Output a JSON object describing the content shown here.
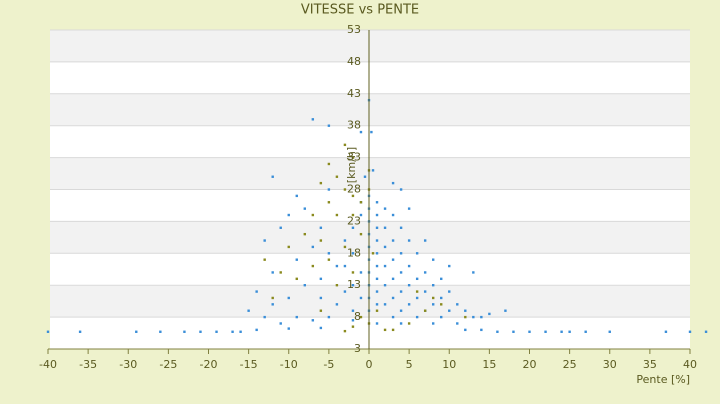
{
  "chart_data": {
    "type": "scatter",
    "title": "VITESSE vs PENTE",
    "x_label": "Pente [%]",
    "y_label": "[km/h]",
    "xlim": [
      -40,
      40
    ],
    "xticks": [
      -40,
      -35,
      -30,
      -25,
      -20,
      -15,
      -10,
      -5,
      0,
      5,
      10,
      15,
      20,
      25,
      30,
      35,
      40
    ],
    "ylim": [
      3,
      53
    ],
    "yticks": [
      3,
      8,
      13,
      18,
      23,
      28,
      33,
      38,
      43,
      48,
      53
    ],
    "grid": true,
    "series": [
      {
        "color": "#3a8ed8",
        "x": [
          0,
          -7,
          -5,
          -1,
          0.3,
          -12,
          -5,
          3,
          4,
          -9,
          -10,
          -11,
          -13,
          -8,
          -6,
          -7,
          -9,
          -12,
          -14,
          -15,
          -13,
          -11,
          -9,
          -7,
          -5,
          -4,
          -3,
          -6,
          -4,
          -2,
          -3,
          -2,
          -1,
          -1,
          0,
          0,
          0,
          0,
          0,
          0,
          0,
          0,
          0,
          0,
          1,
          1,
          1,
          1,
          1,
          1,
          1,
          1,
          1,
          2,
          2,
          2,
          2,
          2,
          2,
          3,
          3,
          3,
          3,
          3,
          3,
          4,
          4,
          4,
          4,
          4,
          5,
          5,
          5,
          5,
          5,
          6,
          6,
          6,
          6,
          7,
          7,
          7,
          7,
          8,
          8,
          8,
          9,
          9,
          9,
          10,
          10,
          10,
          11,
          12,
          13,
          13,
          14,
          15,
          17,
          -1,
          -1,
          -2,
          -2,
          -3,
          -5,
          -6,
          -8,
          -10,
          -12,
          -2,
          1,
          4,
          8,
          11,
          -0.5,
          0.5,
          -40,
          -36,
          -29,
          -26,
          -23,
          -21,
          -19,
          -17,
          -16,
          16,
          18,
          20,
          22,
          24,
          25,
          27,
          30,
          37,
          40,
          42,
          -14,
          -10,
          -6,
          12,
          14
        ],
        "values": [
          42,
          39,
          38,
          37,
          37,
          30,
          28,
          29,
          28,
          27,
          24,
          22,
          20,
          25,
          22,
          19,
          17,
          15,
          12,
          9,
          8,
          7,
          8,
          7.5,
          8,
          10,
          12,
          14,
          16,
          18,
          20,
          22,
          24,
          26,
          27,
          25,
          23,
          21,
          19,
          17,
          15,
          13,
          11,
          9,
          26,
          24,
          22,
          20,
          18,
          16,
          14,
          12,
          10,
          25,
          22,
          19,
          16,
          13,
          10,
          24,
          20,
          17,
          14,
          11,
          8,
          22,
          18,
          15,
          12,
          9,
          25,
          20,
          16,
          13,
          10,
          18,
          14,
          11,
          8,
          20,
          15,
          12,
          9,
          17,
          13,
          10,
          14,
          11,
          8,
          16,
          12,
          9,
          10,
          9,
          15,
          8,
          8,
          8.5,
          9,
          15,
          11,
          13,
          9,
          16,
          18,
          11,
          13,
          11,
          10,
          7.5,
          7,
          7,
          7,
          7,
          30,
          31,
          5.7,
          5.7,
          5.7,
          5.7,
          5.7,
          5.7,
          5.7,
          5.7,
          5.7,
          5.7,
          5.7,
          5.7,
          5.7,
          5.7,
          5.7,
          5.7,
          5.7,
          5.7,
          5.7,
          5.7,
          6,
          6.2,
          6.3,
          6,
          6
        ]
      },
      {
        "color": "#8a8a1e",
        "x": [
          -3,
          -2,
          -5,
          -4,
          -3,
          -6,
          -2,
          -5,
          -7,
          -4,
          -2,
          -8,
          -6,
          -10,
          -13,
          -11,
          -9,
          -7,
          -5,
          -3,
          -1,
          -4,
          -2,
          0,
          0.5,
          1,
          -1,
          0,
          2,
          -2,
          3,
          -3,
          6,
          8,
          9,
          7,
          5,
          12,
          -6,
          -12,
          -1,
          0
        ],
        "values": [
          35,
          33,
          32,
          30,
          28,
          29,
          27,
          26,
          24,
          24,
          24,
          21,
          20,
          19,
          17,
          15,
          14,
          16,
          17,
          19,
          21,
          13,
          15,
          28,
          18,
          9,
          8,
          7,
          6,
          6.5,
          6,
          5.8,
          12,
          11,
          10,
          9,
          7,
          8,
          9,
          11,
          26,
          31
        ]
      }
    ]
  }
}
